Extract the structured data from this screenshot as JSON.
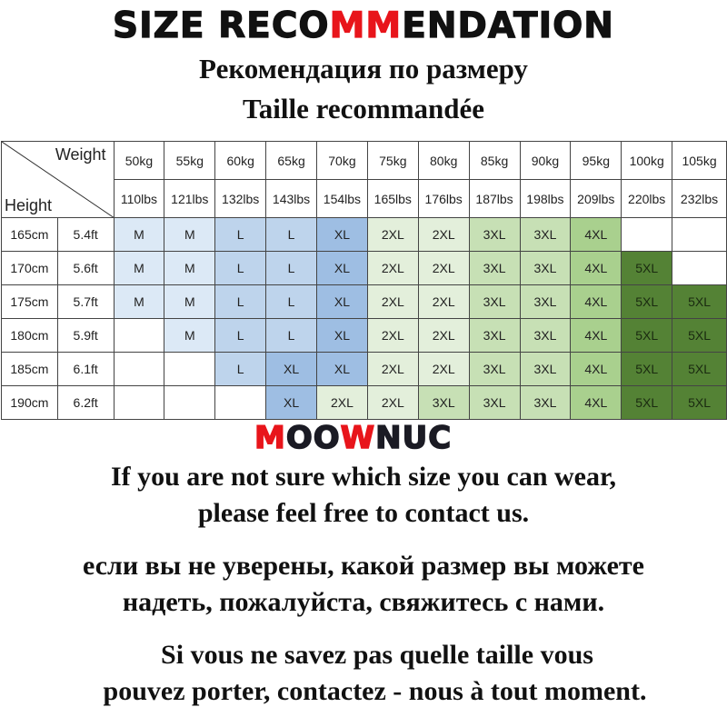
{
  "header": {
    "title_parts": [
      "SIZE RECO",
      "MM",
      "ENDATION"
    ],
    "subtitle_ru": "Рекомендация по размеру",
    "subtitle_fr": "Taille recommandée"
  },
  "table": {
    "corner_weight": "Weight",
    "corner_height": "Height",
    "weights_kg": [
      "50kg",
      "55kg",
      "60kg",
      "65kg",
      "70kg",
      "75kg",
      "80kg",
      "85kg",
      "90kg",
      "95kg",
      "100kg",
      "105kg"
    ],
    "weights_lbs": [
      "110lbs",
      "121lbs",
      "132lbs",
      "143lbs",
      "154lbs",
      "165lbs",
      "176lbs",
      "187lbs",
      "198lbs",
      "209lbs",
      "220lbs",
      "232lbs"
    ],
    "rows": [
      {
        "cm": "165cm",
        "ft": "5.4ft",
        "sizes": [
          "M",
          "M",
          "L",
          "L",
          "XL",
          "2XL",
          "2XL",
          "3XL",
          "3XL",
          "4XL",
          "",
          ""
        ]
      },
      {
        "cm": "170cm",
        "ft": "5.6ft",
        "sizes": [
          "M",
          "M",
          "L",
          "L",
          "XL",
          "2XL",
          "2XL",
          "3XL",
          "3XL",
          "4XL",
          "5XL",
          ""
        ]
      },
      {
        "cm": "175cm",
        "ft": "5.7ft",
        "sizes": [
          "M",
          "M",
          "L",
          "L",
          "XL",
          "2XL",
          "2XL",
          "3XL",
          "3XL",
          "4XL",
          "5XL",
          "5XL"
        ]
      },
      {
        "cm": "180cm",
        "ft": "5.9ft",
        "sizes": [
          "",
          "M",
          "L",
          "L",
          "XL",
          "2XL",
          "2XL",
          "3XL",
          "3XL",
          "4XL",
          "5XL",
          "5XL"
        ]
      },
      {
        "cm": "185cm",
        "ft": "6.1ft",
        "sizes": [
          "",
          "",
          "L",
          "XL",
          "XL",
          "2XL",
          "2XL",
          "3XL",
          "3XL",
          "4XL",
          "5XL",
          "5XL"
        ]
      },
      {
        "cm": "190cm",
        "ft": "6.2ft",
        "sizes": [
          "",
          "",
          "",
          "XL",
          "2XL",
          "2XL",
          "3XL",
          "3XL",
          "3XL",
          "4XL",
          "5XL",
          "5XL"
        ]
      }
    ],
    "size_colors": {
      "M": "#dce9f6",
      "L": "#bed4ec",
      "XL": "#9ebee3",
      "2XL": "#e3efdb",
      "3XL": "#c7e0b5",
      "4XL": "#a9d08e",
      "5XL": "#548235"
    }
  },
  "brand": {
    "parts": [
      "M",
      "OO",
      "W",
      "NUC"
    ]
  },
  "notes": {
    "en": [
      "If you are not sure which size you can wear,",
      "please feel free to contact us."
    ],
    "ru": [
      "если вы не уверены, какой размер вы можете",
      "надеть, пожалуйста, свяжитесь с нами."
    ],
    "fr": [
      "Si vous ne savez pas quelle taille vous",
      "pouvez porter, contactez - nous à tout moment."
    ]
  }
}
